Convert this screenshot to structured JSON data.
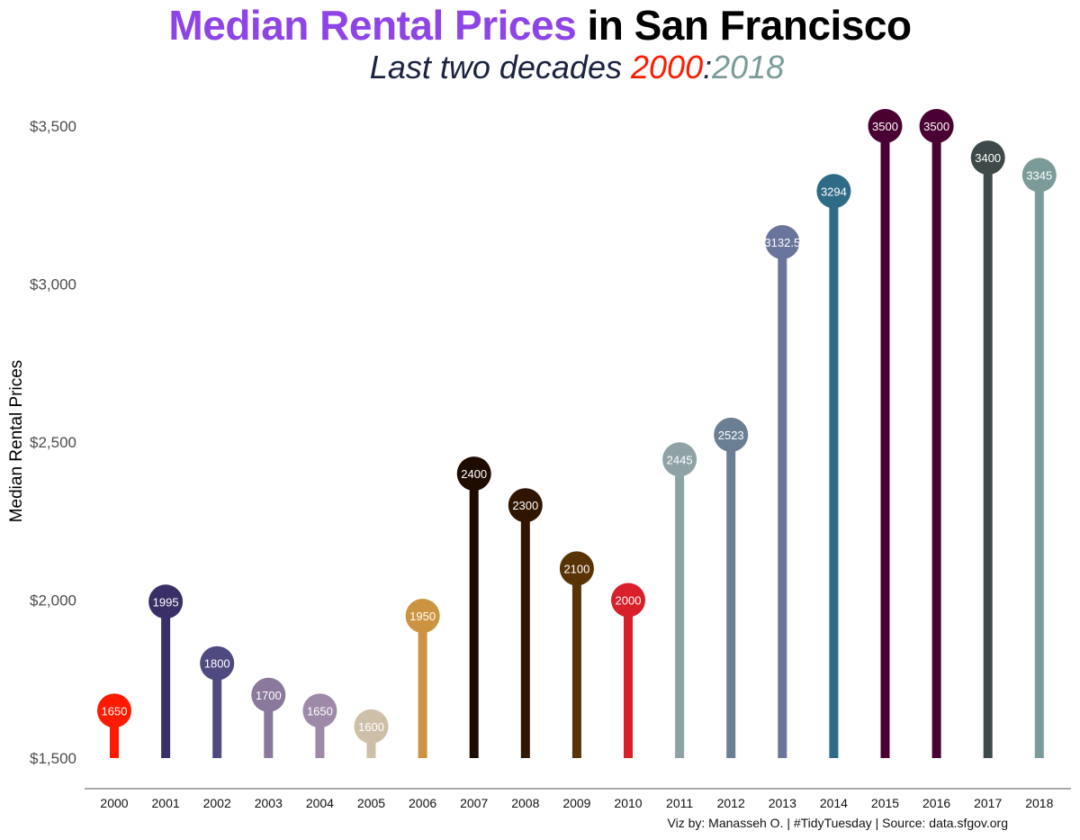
{
  "title": {
    "highlight_words": [
      "Median",
      "Rental",
      "Prices"
    ],
    "rest": "in San Francisco",
    "highlight_color": "#8e44e6"
  },
  "subtitle": {
    "prefix": "Last two decades",
    "start": "2000",
    "separator": ":",
    "end": "2018",
    "start_color": "#ff1a00",
    "end_color": "#7a9b99"
  },
  "caption": "Viz by: Manasseh O. | #TidyTuesday | Source: data.sfgov.org",
  "chart_data": {
    "type": "lollipop",
    "title": "Median Rental Prices in San Francisco",
    "subtitle": "Last two decades 2000:2018",
    "ylabel": "Median Rental Prices",
    "xlabel": "",
    "ylim": [
      1500,
      3500
    ],
    "y_ticks": [
      1500,
      2000,
      2500,
      3000,
      3500
    ],
    "y_tick_labels": [
      "$1,500",
      "$2,000",
      "$2,500",
      "$3,000",
      "$3,500"
    ],
    "grid": false,
    "categories": [
      "2000",
      "2001",
      "2002",
      "2003",
      "2004",
      "2005",
      "2006",
      "2007",
      "2008",
      "2009",
      "2010",
      "2011",
      "2012",
      "2013",
      "2014",
      "2015",
      "2016",
      "2017",
      "2018"
    ],
    "values": [
      1650,
      1995,
      1800,
      1700,
      1650,
      1600,
      1950,
      2400,
      2300,
      2100,
      2000,
      2445,
      2523,
      3132.5,
      3294,
      3500,
      3500,
      3400,
      3345
    ],
    "data_labels": [
      "1650",
      "1995",
      "1800",
      "1700",
      "1650",
      "1600",
      "1950",
      "2400",
      "2300",
      "2100",
      "2000",
      "2445",
      "2523",
      "3132.5",
      "3294",
      "3500",
      "3500",
      "3400",
      "3345"
    ],
    "colors": [
      "#ff1a00",
      "#3a2f66",
      "#4f4a80",
      "#8a799c",
      "#9e8aa8",
      "#cdbfa8",
      "#cc9440",
      "#1f0c00",
      "#301500",
      "#5a3305",
      "#d91f2a",
      "#8fa3a6",
      "#6b7f94",
      "#6a759c",
      "#2e6b87",
      "#4a0032",
      "#4a0032",
      "#3e4a4a",
      "#7a9b99"
    ]
  }
}
